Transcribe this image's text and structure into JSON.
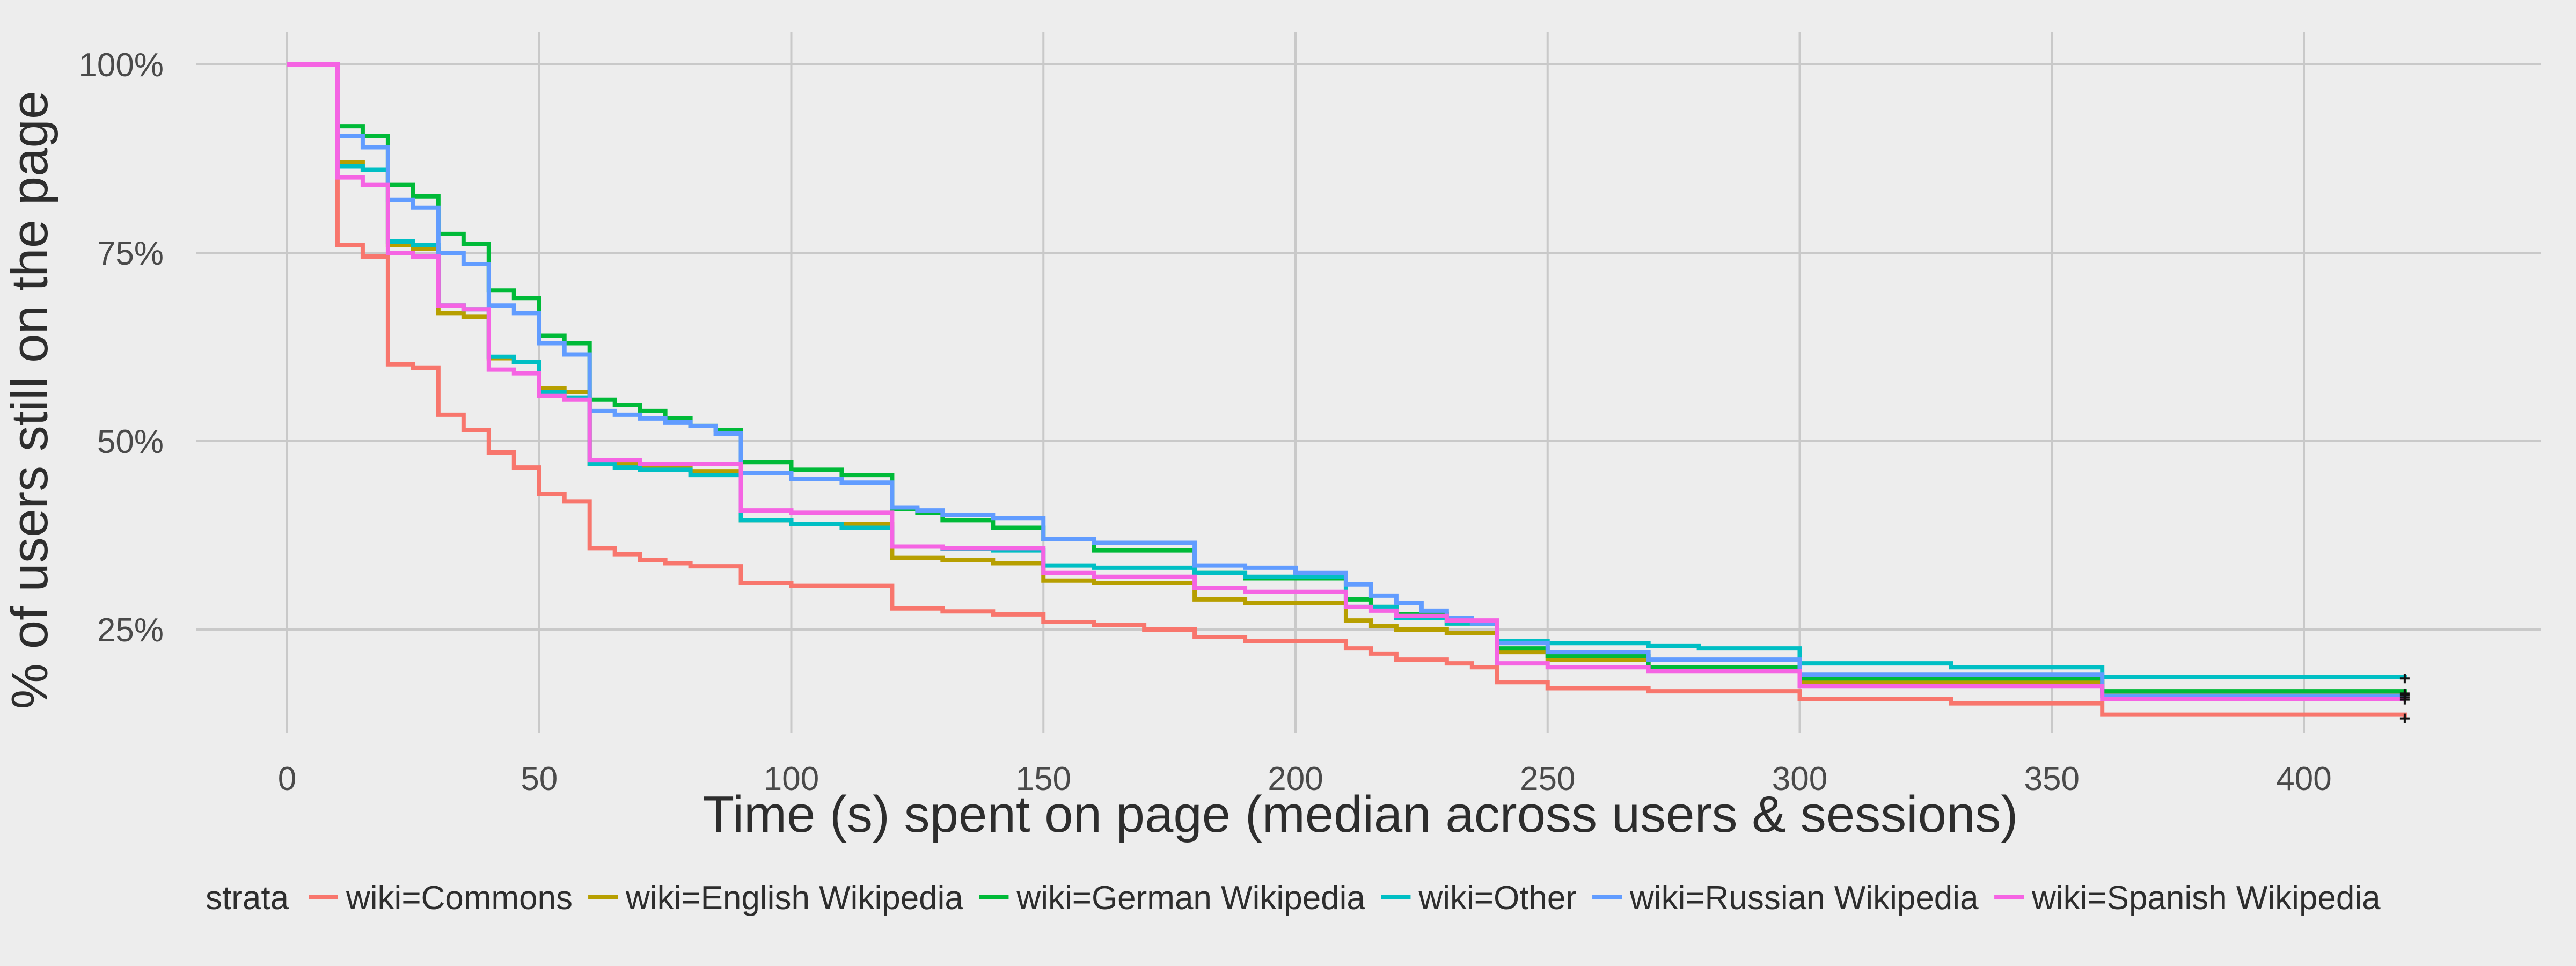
{
  "chart_data": {
    "type": "line",
    "subtype": "step (Kaplan-Meier survival curves)",
    "title": "",
    "xlabel": "Time (s) spent on page (median across users & sessions)",
    "ylabel": "% of users still on the page",
    "xlim": [
      -20,
      440
    ],
    "ylim": [
      0.08,
      1.04
    ],
    "x_ticks": [
      0,
      50,
      100,
      150,
      200,
      250,
      300,
      350,
      400
    ],
    "x_tick_labels": [
      "0",
      "50",
      "100",
      "150",
      "200",
      "250",
      "300",
      "350",
      "400"
    ],
    "y_ticks": [
      0.25,
      0.5,
      0.75,
      1.0
    ],
    "y_tick_labels": [
      "25%",
      "50%",
      "75%",
      "100%"
    ],
    "grid": true,
    "legend_position": "bottom",
    "legend_title": "strata",
    "censor_marks_at_x": 420,
    "series": [
      {
        "name": "wiki=Commons",
        "color": "#F8766D",
        "x": [
          0,
          10,
          15,
          20,
          25,
          30,
          35,
          40,
          45,
          50,
          55,
          60,
          65,
          70,
          75,
          80,
          90,
          100,
          120,
          130,
          140,
          150,
          160,
          170,
          180,
          190,
          210,
          215,
          220,
          230,
          235,
          240,
          250,
          270,
          300,
          330,
          360,
          420
        ],
        "y": [
          1.0,
          0.76,
          0.745,
          0.602,
          0.597,
          0.535,
          0.515,
          0.485,
          0.465,
          0.43,
          0.42,
          0.358,
          0.35,
          0.342,
          0.338,
          0.334,
          0.312,
          0.308,
          0.278,
          0.274,
          0.27,
          0.26,
          0.256,
          0.25,
          0.24,
          0.235,
          0.225,
          0.218,
          0.21,
          0.205,
          0.2,
          0.18,
          0.172,
          0.168,
          0.158,
          0.152,
          0.137,
          0.132
        ]
      },
      {
        "name": "wiki=English Wikipedia",
        "color": "#B79F00",
        "x": [
          0,
          10,
          15,
          20,
          25,
          30,
          35,
          40,
          45,
          50,
          55,
          60,
          70,
          80,
          90,
          100,
          120,
          130,
          140,
          150,
          160,
          180,
          190,
          210,
          215,
          220,
          230,
          240,
          250,
          270,
          300,
          360,
          420
        ],
        "y": [
          1.0,
          0.87,
          0.86,
          0.76,
          0.755,
          0.67,
          0.665,
          0.61,
          0.605,
          0.57,
          0.565,
          0.47,
          0.465,
          0.46,
          0.395,
          0.39,
          0.345,
          0.342,
          0.338,
          0.315,
          0.312,
          0.29,
          0.285,
          0.262,
          0.255,
          0.25,
          0.245,
          0.22,
          0.21,
          0.2,
          0.18,
          0.165,
          0.163
        ]
      },
      {
        "name": "wiki=German Wikipedia",
        "color": "#00BA38",
        "x": [
          0,
          10,
          15,
          20,
          25,
          30,
          35,
          40,
          45,
          50,
          55,
          60,
          65,
          70,
          75,
          80,
          85,
          90,
          100,
          110,
          120,
          125,
          130,
          140,
          150,
          160,
          180,
          190,
          210,
          215,
          220,
          230,
          240,
          250,
          270,
          300,
          360,
          420
        ],
        "y": [
          1.0,
          0.918,
          0.905,
          0.84,
          0.825,
          0.775,
          0.762,
          0.7,
          0.69,
          0.64,
          0.63,
          0.555,
          0.548,
          0.54,
          0.53,
          0.52,
          0.515,
          0.472,
          0.462,
          0.455,
          0.41,
          0.405,
          0.395,
          0.385,
          0.37,
          0.355,
          0.325,
          0.318,
          0.29,
          0.28,
          0.27,
          0.258,
          0.225,
          0.215,
          0.2,
          0.185,
          0.168,
          0.165
        ]
      },
      {
        "name": "wiki=Other",
        "color": "#00BFC4",
        "x": [
          0,
          10,
          15,
          20,
          25,
          30,
          35,
          40,
          45,
          50,
          55,
          60,
          65,
          70,
          80,
          90,
          100,
          110,
          120,
          130,
          140,
          150,
          160,
          180,
          190,
          210,
          220,
          230,
          240,
          250,
          270,
          280,
          300,
          330,
          360,
          420
        ],
        "y": [
          1.0,
          0.865,
          0.86,
          0.765,
          0.76,
          0.68,
          0.675,
          0.612,
          0.605,
          0.565,
          0.558,
          0.47,
          0.465,
          0.462,
          0.455,
          0.395,
          0.39,
          0.385,
          0.36,
          0.357,
          0.355,
          0.335,
          0.332,
          0.325,
          0.32,
          0.28,
          0.265,
          0.258,
          0.235,
          0.232,
          0.228,
          0.225,
          0.205,
          0.2,
          0.187,
          0.185
        ]
      },
      {
        "name": "wiki=Russian Wikipedia",
        "color": "#619CFF",
        "x": [
          0,
          10,
          15,
          20,
          25,
          30,
          35,
          40,
          45,
          50,
          55,
          60,
          65,
          70,
          75,
          80,
          85,
          90,
          100,
          110,
          120,
          125,
          130,
          140,
          150,
          160,
          180,
          190,
          200,
          210,
          215,
          220,
          225,
          230,
          235,
          240,
          250,
          270,
          300,
          360,
          420
        ],
        "y": [
          1.0,
          0.905,
          0.89,
          0.82,
          0.81,
          0.75,
          0.735,
          0.68,
          0.67,
          0.63,
          0.615,
          0.54,
          0.535,
          0.53,
          0.525,
          0.52,
          0.51,
          0.458,
          0.45,
          0.445,
          0.412,
          0.408,
          0.402,
          0.398,
          0.37,
          0.365,
          0.335,
          0.332,
          0.325,
          0.31,
          0.295,
          0.285,
          0.275,
          0.265,
          0.258,
          0.232,
          0.22,
          0.21,
          0.19,
          0.162,
          0.16
        ]
      },
      {
        "name": "wiki=Spanish Wikipedia",
        "color": "#F564E3",
        "x": [
          0,
          10,
          15,
          20,
          25,
          30,
          35,
          40,
          45,
          50,
          55,
          60,
          70,
          90,
          100,
          120,
          130,
          150,
          160,
          180,
          190,
          210,
          215,
          220,
          230,
          240,
          250,
          270,
          300,
          360,
          420
        ],
        "y": [
          1.0,
          0.85,
          0.84,
          0.75,
          0.745,
          0.68,
          0.675,
          0.595,
          0.59,
          0.56,
          0.555,
          0.475,
          0.47,
          0.408,
          0.405,
          0.36,
          0.358,
          0.325,
          0.32,
          0.305,
          0.3,
          0.28,
          0.275,
          0.268,
          0.262,
          0.205,
          0.2,
          0.195,
          0.175,
          0.158,
          0.157
        ]
      }
    ]
  }
}
